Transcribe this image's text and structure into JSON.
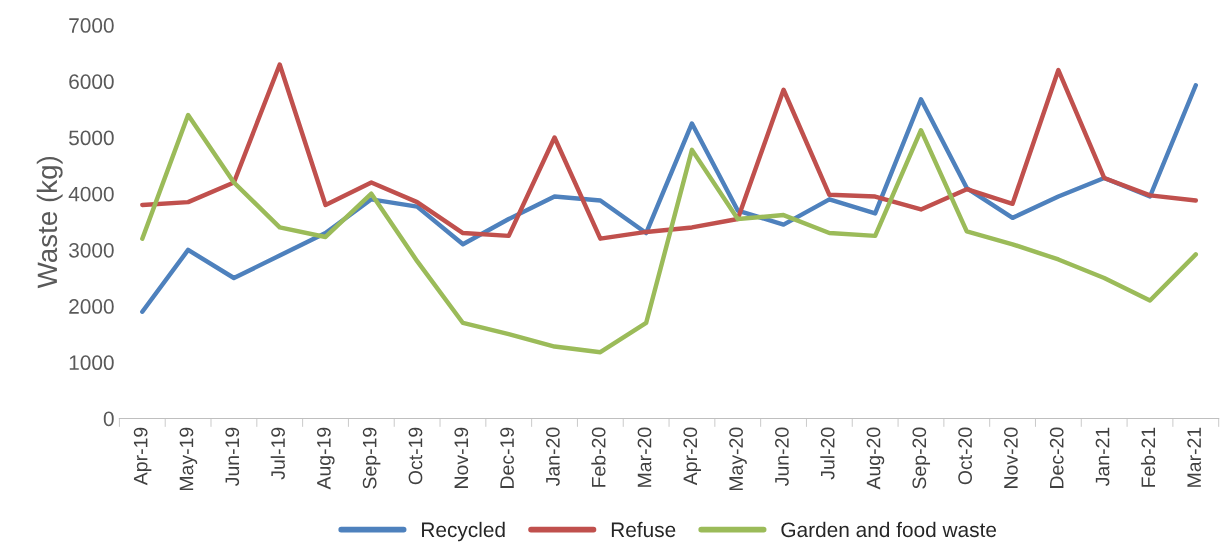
{
  "chart_data": {
    "type": "line",
    "ylabel": "Waste (kg)",
    "categories": [
      "Apr-19",
      "May-19",
      "Jun-19",
      "Jul-19",
      "Aug-19",
      "Sep-19",
      "Oct-19",
      "Nov-19",
      "Dec-19",
      "Jan-20",
      "Feb-20",
      "Mar-20",
      "Apr-20",
      "May-20",
      "Jun-20",
      "Jul-20",
      "Aug-20",
      "Sep-20",
      "Oct-20",
      "Nov-20",
      "Dec-20",
      "Jan-21",
      "Feb-21",
      "Mar-21"
    ],
    "series": [
      {
        "name": "Recycled",
        "color": "#4e81bd",
        "values": [
          1900,
          3000,
          2500,
          2900,
          3300,
          3900,
          3770,
          3100,
          3550,
          3950,
          3880,
          3300,
          5250,
          3700,
          3450,
          3900,
          3650,
          5680,
          4100,
          3570,
          3950,
          4280,
          3950,
          5930
        ]
      },
      {
        "name": "Refuse",
        "color": "#c0504d",
        "values": [
          3800,
          3850,
          4200,
          6300,
          3800,
          4200,
          3850,
          3300,
          3250,
          5000,
          3200,
          3320,
          3400,
          3550,
          5850,
          3980,
          3950,
          3720,
          4080,
          3820,
          6200,
          4280,
          3970,
          3880
        ]
      },
      {
        "name": "Garden and food waste",
        "color": "#9bbb59",
        "values": [
          3200,
          5400,
          4200,
          3400,
          3230,
          4000,
          2800,
          1700,
          1500,
          1280,
          1180,
          1700,
          4780,
          3550,
          3620,
          3300,
          3250,
          5130,
          3330,
          3100,
          2830,
          2500,
          2100,
          2920
        ]
      }
    ],
    "ylim": [
      0,
      7000
    ],
    "yticks": [
      0,
      1000,
      2000,
      3000,
      4000,
      5000,
      6000,
      7000
    ],
    "grid": false,
    "legend": "bottom",
    "marker": "none",
    "line_style": "solid"
  }
}
